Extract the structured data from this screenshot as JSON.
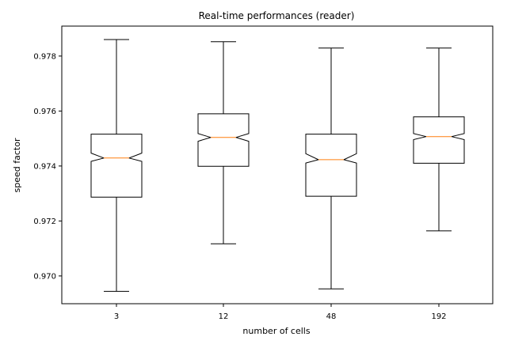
{
  "chart_data": {
    "type": "boxplot",
    "title": "Real-time performances (reader)",
    "xlabel": "number of cells",
    "ylabel": "speed factor",
    "categories": [
      "3",
      "12",
      "48",
      "192"
    ],
    "ylim": [
      0.969,
      0.979
    ],
    "yticks": [
      0.97,
      0.972,
      0.974,
      0.976,
      0.978
    ],
    "ytick_labels": [
      "0.970",
      "0.972",
      "0.974",
      "0.976",
      "0.978"
    ],
    "notched": true,
    "grid": false,
    "boxes": [
      {
        "category": "3",
        "whisker_low": 0.96944,
        "q1": 0.97287,
        "median": 0.97429,
        "q3": 0.97516,
        "whisker_high": 0.9786,
        "notch_low": 0.97417,
        "notch_high": 0.97447
      },
      {
        "category": "12",
        "whisker_low": 0.97117,
        "q1": 0.97399,
        "median": 0.97504,
        "q3": 0.9759,
        "whisker_high": 0.97852,
        "notch_low": 0.9749,
        "notch_high": 0.97518
      },
      {
        "category": "48",
        "whisker_low": 0.96953,
        "q1": 0.9729,
        "median": 0.97423,
        "q3": 0.97516,
        "whisker_high": 0.97829,
        "notch_low": 0.97411,
        "notch_high": 0.97445
      },
      {
        "category": "192",
        "whisker_low": 0.97164,
        "q1": 0.9741,
        "median": 0.97507,
        "q3": 0.97579,
        "whisker_high": 0.97829,
        "notch_low": 0.97496,
        "notch_high": 0.97518
      }
    ],
    "colors": {
      "box": "#000000",
      "median": "#ff7f0e",
      "axes": "#000000"
    }
  }
}
